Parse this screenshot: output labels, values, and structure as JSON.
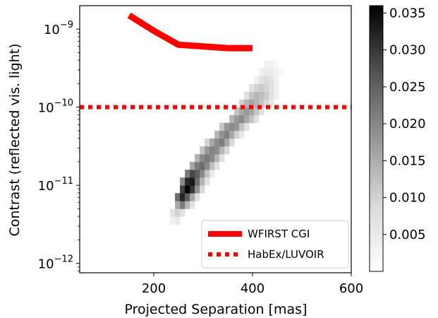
{
  "chart_data": {
    "type": "heatmap",
    "xlabel": "Projected Separation [mas]",
    "ylabel": "Contrast (reflected vis. light)",
    "xlim": [
      50,
      600
    ],
    "ylim_log10": [
      -12.12,
      -8.7
    ],
    "y_scale": "log",
    "x_ticks": [
      {
        "value": 200,
        "label": "200"
      },
      {
        "value": 400,
        "label": "400"
      },
      {
        "value": 600,
        "label": "600"
      }
    ],
    "y_ticks": [
      {
        "exp": -9,
        "base": "10",
        "sup": "−9"
      },
      {
        "exp": -10,
        "base": "10",
        "sup": "−10"
      },
      {
        "exp": -11,
        "base": "10",
        "sup": "−11"
      },
      {
        "exp": -12,
        "base": "10",
        "sup": "−12"
      }
    ],
    "series": [
      {
        "name": "WFIRST CGI",
        "style": "solid",
        "color": "#ff0000",
        "x": [
          150,
          200,
          250,
          300,
          350,
          400
        ],
        "y": [
          1.5e-09,
          9.5e-10,
          6.3e-10,
          6e-10,
          5.7e-10,
          5.7e-10
        ]
      },
      {
        "name": "HabEx/LUVOIR",
        "style": "dotted",
        "color": "#ff0000",
        "x": [
          50,
          600
        ],
        "y": [
          1e-10,
          1e-10
        ]
      }
    ],
    "heatmap": {
      "colormap": "Greys",
      "x_edges_start": 233,
      "x_bin_width": 10,
      "log_y_edges_start": -11.5,
      "log_y_bin_width": 0.1,
      "cells": [
        [
          0,
          0,
          0.002
        ],
        [
          1,
          0,
          0.003
        ],
        [
          0,
          1,
          0.004
        ],
        [
          1,
          1,
          0.006
        ],
        [
          2,
          1,
          0.004
        ],
        [
          1,
          2,
          0.012
        ],
        [
          2,
          2,
          0.018
        ],
        [
          3,
          2,
          0.01
        ],
        [
          4,
          2,
          0.004
        ],
        [
          1,
          3,
          0.02
        ],
        [
          2,
          3,
          0.03
        ],
        [
          3,
          3,
          0.022
        ],
        [
          4,
          3,
          0.012
        ],
        [
          5,
          3,
          0.004
        ],
        [
          2,
          4,
          0.026
        ],
        [
          3,
          4,
          0.036
        ],
        [
          4,
          4,
          0.028
        ],
        [
          5,
          4,
          0.015
        ],
        [
          6,
          4,
          0.005
        ],
        [
          2,
          5,
          0.016
        ],
        [
          3,
          5,
          0.03
        ],
        [
          4,
          5,
          0.032
        ],
        [
          5,
          5,
          0.02
        ],
        [
          6,
          5,
          0.01
        ],
        [
          7,
          5,
          0.004
        ],
        [
          3,
          6,
          0.018
        ],
        [
          4,
          6,
          0.025
        ],
        [
          5,
          6,
          0.022
        ],
        [
          6,
          6,
          0.016
        ],
        [
          7,
          6,
          0.008
        ],
        [
          8,
          6,
          0.003
        ],
        [
          4,
          7,
          0.012
        ],
        [
          5,
          7,
          0.018
        ],
        [
          6,
          7,
          0.02
        ],
        [
          7,
          7,
          0.016
        ],
        [
          8,
          7,
          0.009
        ],
        [
          9,
          7,
          0.004
        ],
        [
          5,
          8,
          0.01
        ],
        [
          6,
          8,
          0.016
        ],
        [
          7,
          8,
          0.018
        ],
        [
          8,
          8,
          0.016
        ],
        [
          9,
          8,
          0.01
        ],
        [
          10,
          8,
          0.004
        ],
        [
          6,
          9,
          0.008
        ],
        [
          7,
          9,
          0.014
        ],
        [
          8,
          9,
          0.017
        ],
        [
          9,
          9,
          0.016
        ],
        [
          10,
          9,
          0.01
        ],
        [
          11,
          9,
          0.005
        ],
        [
          7,
          10,
          0.006
        ],
        [
          8,
          10,
          0.012
        ],
        [
          9,
          10,
          0.016
        ],
        [
          10,
          10,
          0.018
        ],
        [
          11,
          10,
          0.012
        ],
        [
          12,
          10,
          0.005
        ],
        [
          9,
          11,
          0.01
        ],
        [
          10,
          11,
          0.015
        ],
        [
          11,
          11,
          0.017
        ],
        [
          12,
          11,
          0.012
        ],
        [
          13,
          11,
          0.006
        ],
        [
          14,
          11,
          0.003
        ],
        [
          10,
          12,
          0.008
        ],
        [
          11,
          12,
          0.014
        ],
        [
          12,
          12,
          0.016
        ],
        [
          13,
          12,
          0.014
        ],
        [
          14,
          12,
          0.008
        ],
        [
          15,
          12,
          0.004
        ],
        [
          12,
          13,
          0.01
        ],
        [
          13,
          13,
          0.014
        ],
        [
          14,
          13,
          0.016
        ],
        [
          15,
          13,
          0.012
        ],
        [
          16,
          13,
          0.008
        ],
        [
          17,
          13,
          0.004
        ],
        [
          13,
          14,
          0.008
        ],
        [
          14,
          14,
          0.012
        ],
        [
          15,
          14,
          0.014
        ],
        [
          16,
          14,
          0.012
        ],
        [
          17,
          14,
          0.008
        ],
        [
          18,
          14,
          0.004
        ],
        [
          14,
          15,
          0.006
        ],
        [
          15,
          15,
          0.01
        ],
        [
          16,
          15,
          0.012
        ],
        [
          17,
          15,
          0.01
        ],
        [
          18,
          15,
          0.008
        ],
        [
          19,
          15,
          0.005
        ],
        [
          20,
          15,
          0.003
        ],
        [
          15,
          16,
          0.004
        ],
        [
          16,
          16,
          0.008
        ],
        [
          17,
          16,
          0.01
        ],
        [
          18,
          16,
          0.009
        ],
        [
          19,
          16,
          0.007
        ],
        [
          20,
          16,
          0.004
        ],
        [
          21,
          16,
          0.002
        ],
        [
          16,
          17,
          0.004
        ],
        [
          17,
          17,
          0.006
        ],
        [
          18,
          17,
          0.007
        ],
        [
          19,
          17,
          0.006
        ],
        [
          20,
          17,
          0.004
        ],
        [
          21,
          17,
          0.002
        ],
        [
          17,
          18,
          0.002
        ],
        [
          18,
          18,
          0.004
        ],
        [
          19,
          18,
          0.005
        ],
        [
          20,
          18,
          0.004
        ],
        [
          21,
          18,
          0.002
        ],
        [
          18,
          19,
          0.002
        ],
        [
          19,
          19,
          0.003
        ],
        [
          20,
          19,
          0.003
        ],
        [
          21,
          19,
          0.002
        ],
        [
          22,
          19,
          0.001
        ],
        [
          19,
          20,
          0.002
        ],
        [
          20,
          20,
          0.002
        ],
        [
          21,
          20,
          0.001
        ]
      ]
    },
    "colorbar": {
      "vmin": 0.0,
      "vmax": 0.036,
      "ticks": [
        {
          "value": 0.005,
          "label": "0.005"
        },
        {
          "value": 0.01,
          "label": "0.010"
        },
        {
          "value": 0.015,
          "label": "0.015"
        },
        {
          "value": 0.02,
          "label": "0.020"
        },
        {
          "value": 0.025,
          "label": "0.025"
        },
        {
          "value": 0.03,
          "label": "0.030"
        },
        {
          "value": 0.035,
          "label": "0.035"
        }
      ]
    },
    "legend": {
      "placement": "lower-right"
    },
    "grid": false
  }
}
